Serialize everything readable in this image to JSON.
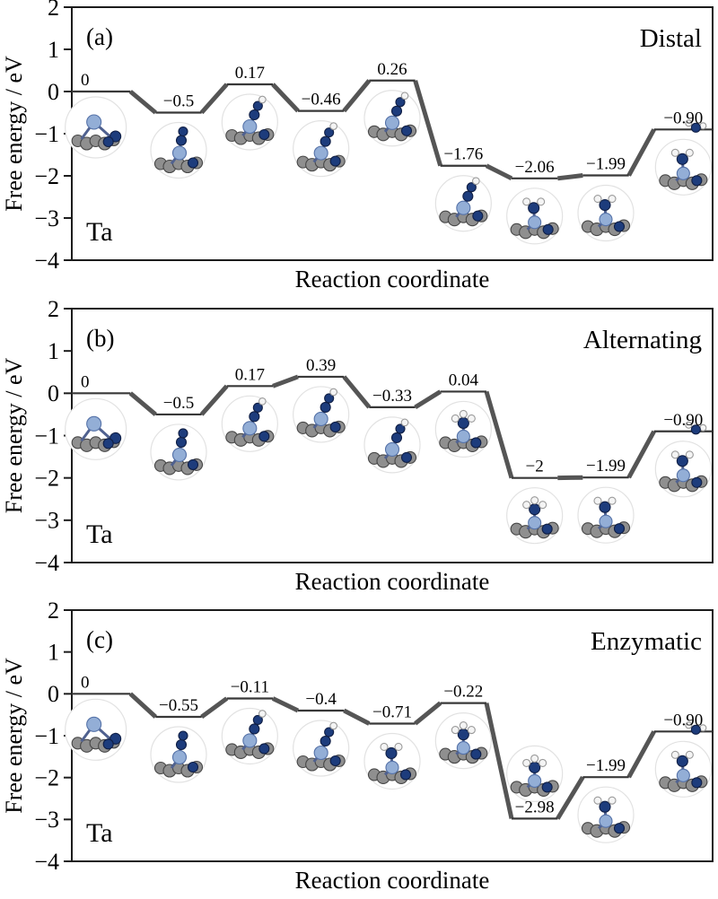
{
  "figure": {
    "xlabel": "Reaction coordinate",
    "ylabel": "Free energy / eV",
    "catalyst": "Ta"
  },
  "chart_data": [
    {
      "type": "line",
      "subtype": "free-energy-step-diagram",
      "panel_label": "(a)",
      "mechanism": "Distal",
      "catalyst": "Ta",
      "xlabel": "Reaction coordinate",
      "ylabel": "Free energy / eV",
      "ylim": [
        -4,
        2
      ],
      "yticks": [
        2,
        1,
        0,
        -1,
        -2,
        -3,
        -4
      ],
      "grid": false,
      "steps": [
        {
          "label": "0",
          "value": 0,
          "mol": "slab-icon"
        },
        {
          "label": "−0.5",
          "value": -0.5,
          "mol": "n2-icon"
        },
        {
          "label": "0.17",
          "value": 0.17,
          "mol": "n2h-icon"
        },
        {
          "label": "−0.46",
          "value": -0.46,
          "mol": "n2h-icon"
        },
        {
          "label": "0.26",
          "value": 0.26,
          "mol": "n2h-icon"
        },
        {
          "label": "−1.76",
          "value": -1.76,
          "mol": "n2h-icon"
        },
        {
          "label": "−2.06",
          "value": -2.06,
          "mol": "nh2-icon"
        },
        {
          "label": "−1.99",
          "value": -1.99,
          "mol": "nh2-icon"
        },
        {
          "label": "−0.90",
          "value": -0.9,
          "mol": "free-nh3-icon"
        }
      ]
    },
    {
      "type": "line",
      "subtype": "free-energy-step-diagram",
      "panel_label": "(b)",
      "mechanism": "Alternating",
      "catalyst": "Ta",
      "xlabel": "Reaction coordinate",
      "ylabel": "Free energy / eV",
      "ylim": [
        -4,
        2
      ],
      "yticks": [
        2,
        1,
        0,
        -1,
        -2,
        -3,
        -4
      ],
      "grid": false,
      "steps": [
        {
          "label": "0",
          "value": 0,
          "mol": "slab-icon"
        },
        {
          "label": "−0.5",
          "value": -0.5,
          "mol": "n2-icon"
        },
        {
          "label": "0.17",
          "value": 0.17,
          "mol": "n2h-icon"
        },
        {
          "label": "0.39",
          "value": 0.39,
          "mol": "n2h-icon"
        },
        {
          "label": "−0.33",
          "value": -0.33,
          "mol": "n2h-icon"
        },
        {
          "label": "0.04",
          "value": 0.04,
          "mol": "nh3-icon"
        },
        {
          "label": "−2",
          "value": -2,
          "mol": "nh3-icon"
        },
        {
          "label": "−1.99",
          "value": -1.99,
          "mol": "nh2-icon"
        },
        {
          "label": "−0.90",
          "value": -0.9,
          "mol": "free-nh3-icon"
        }
      ]
    },
    {
      "type": "line",
      "subtype": "free-energy-step-diagram",
      "panel_label": "(c)",
      "mechanism": "Enzymatic",
      "catalyst": "Ta",
      "xlabel": "Reaction coordinate",
      "ylabel": "Free energy / eV",
      "ylim": [
        -4,
        2
      ],
      "yticks": [
        2,
        1,
        0,
        -1,
        -2,
        -3,
        -4
      ],
      "grid": false,
      "steps": [
        {
          "label": "0",
          "value": 0,
          "mol": "slab-icon"
        },
        {
          "label": "−0.55",
          "value": -0.55,
          "mol": "n2-icon"
        },
        {
          "label": "−0.11",
          "value": -0.11,
          "mol": "n2h-icon"
        },
        {
          "label": "−0.4",
          "value": -0.4,
          "mol": "n2h-icon"
        },
        {
          "label": "−0.71",
          "value": -0.71,
          "mol": "nh2-icon"
        },
        {
          "label": "−0.22",
          "value": -0.22,
          "mol": "nh3-icon"
        },
        {
          "label": "−2.98",
          "value": -2.98,
          "mol": "nh3-icon",
          "mol_pos": "above"
        },
        {
          "label": "−1.99",
          "value": -1.99,
          "mol": "nh2-icon"
        },
        {
          "label": "−0.90",
          "value": -0.9,
          "mol": "free-nh3-icon"
        }
      ]
    }
  ]
}
